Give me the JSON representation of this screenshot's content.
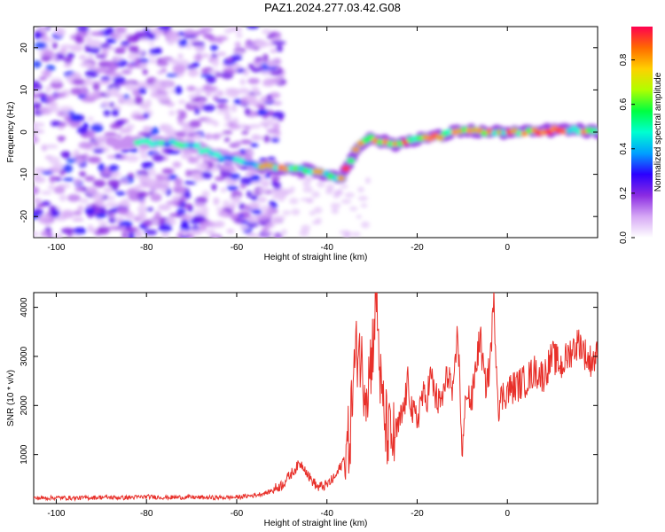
{
  "page": {
    "title": "PAZ1.2024.277.03.42.G08"
  },
  "colors": {
    "snr_line": "#e8302a",
    "axis": "#000000",
    "background": "#ffffff"
  },
  "chart_data": [
    {
      "type": "heatmap",
      "name": "spectrogram",
      "xlabel": "Height of straight line (km)",
      "ylabel": "Frequency (Hz)",
      "xlim": [
        -105,
        20
      ],
      "ylim": [
        -25,
        25
      ],
      "xticks": [
        -100,
        -80,
        -60,
        -40,
        -20,
        0
      ],
      "yticks": [
        -20,
        -10,
        0,
        10,
        20
      ],
      "ridge": {
        "description_free": true,
        "x": [
          -80,
          -75,
          -70,
          -65,
          -60,
          -55,
          -50,
          -45,
          -40,
          -37,
          -35,
          -33,
          -30,
          -25,
          -20,
          -15,
          -10,
          -5,
          0,
          5,
          10,
          15,
          20
        ],
        "y": [
          -2.5,
          -2.5,
          -3,
          -5.5,
          -6.5,
          -8,
          -8.5,
          -9,
          -10,
          -11,
          -7,
          -3,
          -1.5,
          -3,
          -1.5,
          -1,
          0.5,
          0,
          0,
          0,
          0.5,
          0.5,
          0
        ]
      },
      "colorbar": {
        "label": "Normalized spectral amplitude",
        "ticks": [
          0.0,
          0.2,
          0.4,
          0.6,
          0.8
        ],
        "tick_labels": [
          "0.0",
          "0.2",
          "0.4",
          "0.6",
          "0.8"
        ],
        "range": [
          0,
          0.95
        ],
        "colormap": [
          "#ffffff",
          "#d6a8f5",
          "#8b2be2",
          "#2b00ff",
          "#00a0ff",
          "#00ffd0",
          "#00ff40",
          "#b0ff00",
          "#ffd000",
          "#ff6a00",
          "#ff0050"
        ]
      },
      "grid": false,
      "legend": "none"
    },
    {
      "type": "line",
      "name": "snr",
      "xlabel": "Height of straight line (km)",
      "ylabel": "SNR (10 * v/v)",
      "xlim": [
        -105,
        20
      ],
      "ylim": [
        0,
        4300
      ],
      "xticks": [
        -100,
        -80,
        -60,
        -40,
        -20,
        0
      ],
      "yticks": [
        1000,
        2000,
        3000,
        4000
      ],
      "series": [
        {
          "x": [
            -105,
            -100,
            -95,
            -90,
            -85,
            -80,
            -75,
            -70,
            -65,
            -60,
            -56,
            -53,
            -50,
            -48,
            -46,
            -45,
            -44,
            -42,
            -40,
            -38,
            -36,
            -35,
            -34,
            -33,
            -32,
            -31,
            -30,
            -29,
            -28,
            -27,
            -26,
            -25,
            -24,
            -23,
            -22,
            -21,
            -20,
            -19,
            -18,
            -17,
            -16,
            -15,
            -14,
            -13,
            -12,
            -11,
            -10,
            -9,
            -8,
            -7,
            -6,
            -5,
            -4,
            -3,
            -2,
            -1,
            0,
            2,
            4,
            6,
            8,
            10,
            12,
            14,
            16,
            18,
            20
          ],
          "y": [
            110,
            120,
            115,
            130,
            120,
            140,
            125,
            130,
            120,
            130,
            170,
            230,
            380,
            600,
            820,
            750,
            550,
            330,
            380,
            560,
            950,
            1300,
            2700,
            3300,
            2600,
            2400,
            3100,
            4250,
            2200,
            1600,
            1300,
            1350,
            1600,
            1900,
            2500,
            1800,
            1700,
            2200,
            2100,
            2600,
            2200,
            2000,
            2300,
            2700,
            2100,
            3600,
            1000,
            2400,
            2000,
            2800,
            3400,
            2400,
            2700,
            4100,
            2000,
            2200,
            2300,
            2400,
            2500,
            2700,
            2600,
            3000,
            2800,
            3100,
            3300,
            2900,
            3000
          ]
        }
      ],
      "grid": false,
      "legend": "none"
    }
  ]
}
